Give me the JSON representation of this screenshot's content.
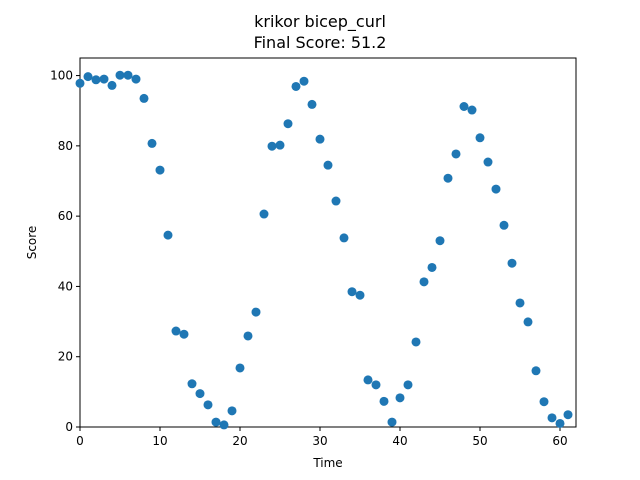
{
  "chart_data": {
    "type": "scatter",
    "title": "krikor bicep_curl",
    "subtitle": "Final Score: 51.2",
    "xlabel": "Time",
    "ylabel": "Score",
    "xlim": [
      0,
      62
    ],
    "ylim": [
      0,
      105
    ],
    "xticks": [
      0,
      10,
      20,
      30,
      40,
      50,
      60
    ],
    "yticks": [
      0,
      20,
      40,
      60,
      80,
      100
    ],
    "grid": false,
    "point_color": "#1f77b4",
    "x": [
      0,
      1,
      2,
      3,
      4,
      5,
      6,
      7,
      8,
      9,
      10,
      11,
      12,
      13,
      14,
      15,
      16,
      17,
      18,
      19,
      20,
      21,
      22,
      23,
      24,
      25,
      26,
      27,
      28,
      29,
      30,
      31,
      32,
      33,
      34,
      35,
      36,
      37,
      38,
      39,
      40,
      41,
      42,
      43,
      44,
      45,
      46,
      47,
      48,
      49,
      50,
      51,
      52,
      53,
      54,
      55,
      56,
      57,
      58,
      59,
      60,
      61
    ],
    "y": [
      97.8,
      99.7,
      98.8,
      99.0,
      97.2,
      100.1,
      100.1,
      99.0,
      93.5,
      80.7,
      73.1,
      54.6,
      27.3,
      26.4,
      12.3,
      9.5,
      6.3,
      1.4,
      0.6,
      4.6,
      16.8,
      25.9,
      32.7,
      60.6,
      79.9,
      80.2,
      86.3,
      96.9,
      98.4,
      91.8,
      81.9,
      74.5,
      64.3,
      53.8,
      38.5,
      37.5,
      13.4,
      12.0,
      7.3,
      1.4,
      8.3,
      12.0,
      24.2,
      41.3,
      45.4,
      53.0,
      70.8,
      77.7,
      91.2,
      90.2,
      82.3,
      75.4,
      67.7,
      57.4,
      46.6,
      35.3,
      29.9,
      16.0,
      7.2,
      2.6,
      1.0,
      3.5
    ]
  }
}
